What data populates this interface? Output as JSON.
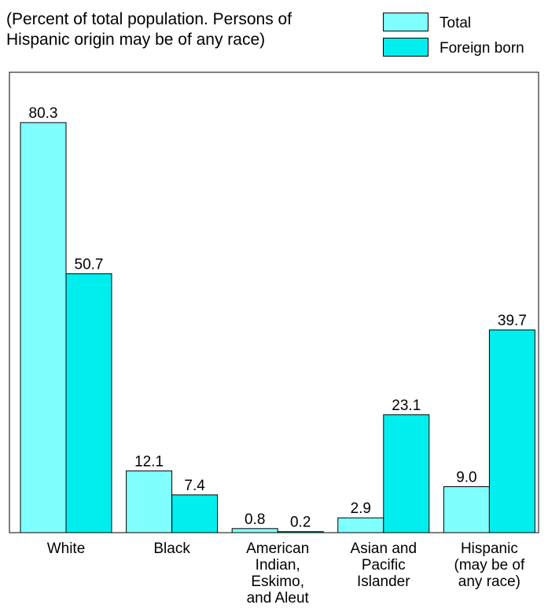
{
  "chart_data": {
    "type": "bar",
    "subtitle": [
      "(Percent of total population.  Persons of",
      "Hispanic origin may be of any race)"
    ],
    "categories": [
      [
        "White"
      ],
      [
        "Black"
      ],
      [
        "American",
        "Indian,",
        "Eskimo,",
        "and Aleut"
      ],
      [
        "Asian and",
        "Pacific",
        "Islander"
      ],
      [
        "Hispanic",
        "(may be of",
        "any race)"
      ]
    ],
    "series": [
      {
        "name": "Total",
        "color": "#80ffff",
        "values": [
          80.3,
          12.1,
          0.8,
          2.9,
          9.0
        ],
        "labels": [
          "80.3",
          "12.1",
          "0.8",
          "2.9",
          "9.0"
        ]
      },
      {
        "name": "Foreign born",
        "color": "#00eeee",
        "values": [
          50.7,
          7.4,
          0.2,
          23.1,
          39.7
        ],
        "labels": [
          "50.7",
          "7.4",
          "0.2",
          "23.1",
          "39.7"
        ]
      }
    ],
    "ylim": [
      0,
      100
    ],
    "grid": false,
    "legend_position": "top-right"
  }
}
